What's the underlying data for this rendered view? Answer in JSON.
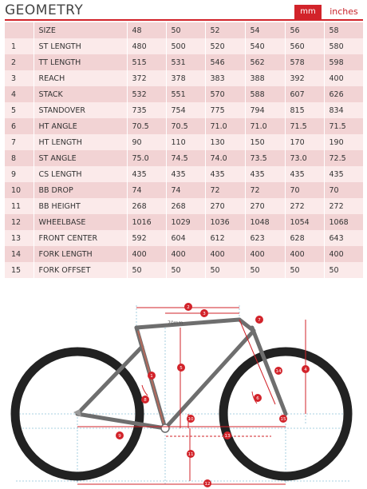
{
  "header": {
    "title": "GEOMETRY",
    "unit_mm": "mm",
    "unit_inches": "inches"
  },
  "table": {
    "columns": [
      "",
      "SIZE",
      "48",
      "50",
      "52",
      "54",
      "56",
      "58"
    ],
    "rows": [
      [
        "1",
        "ST LENGTH",
        "480",
        "500",
        "520",
        "540",
        "560",
        "580"
      ],
      [
        "2",
        "TT LENGTH",
        "515",
        "531",
        "546",
        "562",
        "578",
        "598"
      ],
      [
        "3",
        "REACH",
        "372",
        "378",
        "383",
        "388",
        "392",
        "400"
      ],
      [
        "4",
        "STACK",
        "532",
        "551",
        "570",
        "588",
        "607",
        "626"
      ],
      [
        "5",
        "STANDOVER",
        "735",
        "754",
        "775",
        "794",
        "815",
        "834"
      ],
      [
        "6",
        "HT ANGLE",
        "70.5",
        "70.5",
        "71.0",
        "71.0",
        "71.5",
        "71.5"
      ],
      [
        "7",
        "HT LENGTH",
        "90",
        "110",
        "130",
        "150",
        "170",
        "190"
      ],
      [
        "8",
        "ST ANGLE",
        "75.0",
        "74.5",
        "74.0",
        "73.5",
        "73.0",
        "72.5"
      ],
      [
        "9",
        "CS LENGTH",
        "435",
        "435",
        "435",
        "435",
        "435",
        "435"
      ],
      [
        "10",
        "BB DROP",
        "74",
        "74",
        "72",
        "72",
        "70",
        "70"
      ],
      [
        "11",
        "BB HEIGHT",
        "268",
        "268",
        "270",
        "270",
        "272",
        "272"
      ],
      [
        "12",
        "WHEELBASE",
        "1016",
        "1029",
        "1036",
        "1048",
        "1054",
        "1068"
      ],
      [
        "13",
        "FRONT CENTER",
        "592",
        "604",
        "612",
        "623",
        "628",
        "643"
      ],
      [
        "14",
        "FORK LENGTH",
        "400",
        "400",
        "400",
        "400",
        "400",
        "400"
      ],
      [
        "15",
        "FORK OFFSET",
        "50",
        "50",
        "50",
        "50",
        "50",
        "50"
      ]
    ]
  },
  "diagram": {
    "markers": [
      "1",
      "2",
      "3",
      "4",
      "5",
      "6",
      "7",
      "8",
      "9",
      "10",
      "11",
      "12",
      "13",
      "14",
      "15"
    ],
    "annotation": "70mm",
    "colors": {
      "frame": "#6e6e6e",
      "tire": "#222222",
      "dimension": "#d2232a",
      "guide": "#8fc3d8"
    }
  }
}
